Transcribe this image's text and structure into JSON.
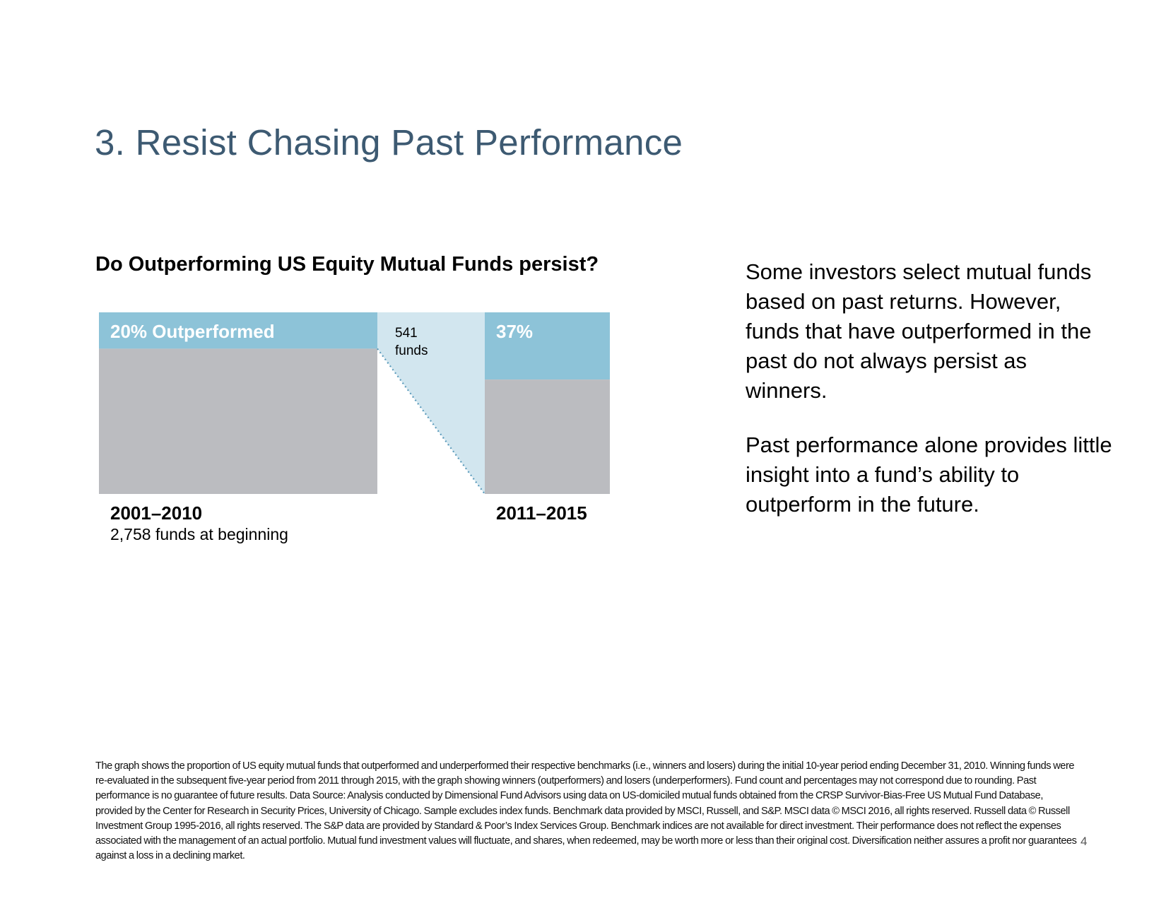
{
  "page": {
    "title": "3. Resist Chasing Past Performance",
    "page_number": "4"
  },
  "colors": {
    "title": "#3d5a72",
    "outperformed": "#8dc3d8",
    "underperformed": "#bbbcc0",
    "connector": "#d2e6ef",
    "connector_line": "#5b9bbb"
  },
  "chart_data": {
    "type": "bar",
    "title": "Do Outperforming US Equity Mutual Funds persist?",
    "periods": [
      {
        "label": "2001–2010",
        "sublabel": "2,758 funds at beginning",
        "outperformed_label": "20% Outperformed",
        "outperformed_pct": 20,
        "underperformed_pct": 80,
        "funds": 2758
      },
      {
        "label": "2011–2015",
        "sublabel": "",
        "outperformed_label": "37%",
        "outperformed_pct": 37,
        "underperformed_pct": 63,
        "funds": 541
      }
    ],
    "connector_label": [
      "541",
      "funds"
    ],
    "ylim": [
      0,
      100
    ]
  },
  "body": {
    "paragraph_1": "Some investors select mutual funds based on past returns. However, funds that have outperformed in the past do not always persist as winners.",
    "paragraph_2": "Past performance alone provides little insight into a fund’s ability to outperform in the future."
  },
  "footnote": "The graph shows the proportion of US equity mutual funds that outperformed and underperformed their respective benchmarks (i.e., winners and losers) during the initial 10-year period ending December 31, 2010. Winning funds were re-evaluated in the subsequent five-year period from 2011 through 2015, with the graph showing winners (outperformers) and losers (underperformers). Fund count and percentages may not correspond due to rounding. Past performance is no guarantee of future results. Data Source: Analysis conducted by Dimensional Fund Advisors using data on US-domiciled mutual funds obtained from the CRSP Survivor-Bias-Free US Mutual Fund Database, provided by the Center for Research in Security Prices, University of Chicago. Sample excludes index funds. Benchmark data provided by MSCI, Russell, and S&P. MSCI data © MSCI 2016, all rights reserved. Russell data © Russell Investment Group 1995-2016, all rights reserved. The S&P data are provided by Standard & Poor’s Index Services Group. Benchmark indices are not available for direct investment. Their performance does not reflect the expenses associated with the management of an actual portfolio. Mutual fund investment values will fluctuate, and shares, when redeemed, may be worth more or less than their original cost. Diversification neither assures a profit nor guarantees against a loss in a declining market."
}
